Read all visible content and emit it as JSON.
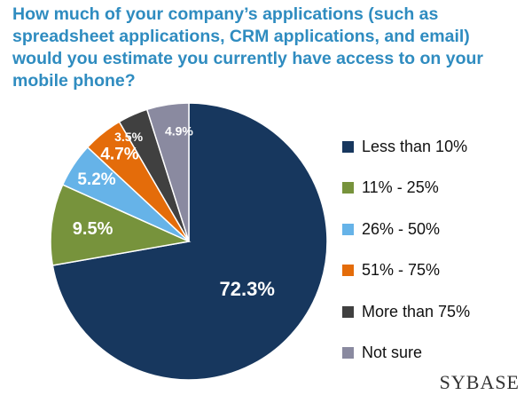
{
  "chart_data": {
    "type": "pie",
    "title": "How much of your company’s applications (such as spreadsheet applications, CRM applications, and email) would you estimate you currently have access to on your mobile phone?",
    "categories": [
      "Less than 10%",
      "11% - 25%",
      "26% - 50%",
      "51% - 75%",
      "More than 75%",
      "Not sure"
    ],
    "values": [
      72.3,
      9.5,
      5.2,
      4.7,
      3.5,
      4.9
    ],
    "value_labels": [
      "72.3%",
      "9.5%",
      "5.2%",
      "4.7%",
      "3.5%",
      "4.9%"
    ],
    "colors": [
      "#17375e",
      "#77933c",
      "#66b3e8",
      "#e46c0a",
      "#404040",
      "#8a8aa0"
    ],
    "label_colors": [
      "#ffffff",
      "#ffffff",
      "#ffffff",
      "#ffffff",
      "#ffffff",
      "#ffffff"
    ],
    "legend_position": "right"
  },
  "brand": {
    "name": "SYBASE"
  }
}
